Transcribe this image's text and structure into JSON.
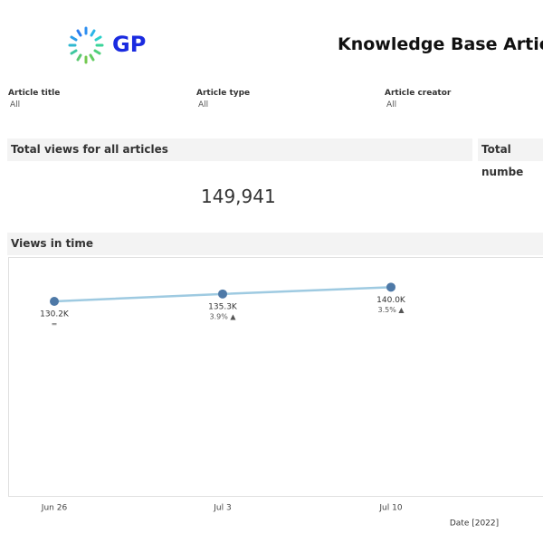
{
  "logo": "GP",
  "header": {
    "title": "Knowledge Base Articl"
  },
  "filters": [
    {
      "label": "Article title",
      "value": "All"
    },
    {
      "label": "Article type",
      "value": "All"
    },
    {
      "label": "Article creator",
      "value": "All"
    }
  ],
  "kpis": [
    {
      "title": "Total views for all articles",
      "value": "149,941"
    },
    {
      "title": "Total numbe"
    }
  ],
  "chart_data": {
    "type": "line",
    "title": "Views in time",
    "x_label": "Date [2022]",
    "categories": [
      "Jun 26",
      "Jul 3",
      "Jul 10"
    ],
    "series": [
      {
        "name": "Views",
        "color": "#9ecae1",
        "marker_color": "#4e79a7",
        "values": [
          130200,
          135300,
          140000
        ],
        "value_labels": [
          "130.2K",
          "135.3K",
          "140.0K"
        ],
        "change_labels": [
          "=",
          "3.9% ▲",
          "3.5% ▲"
        ]
      }
    ]
  }
}
